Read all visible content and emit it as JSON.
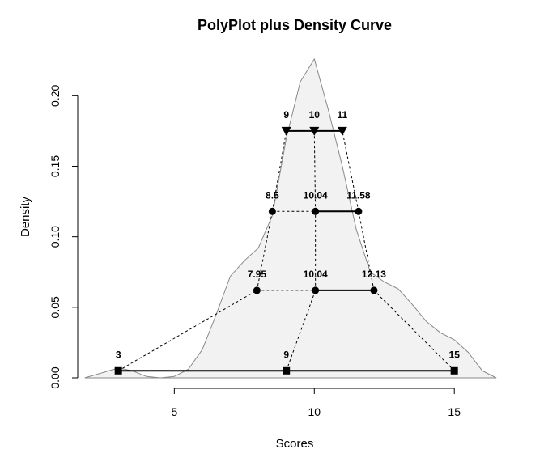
{
  "chart_data": {
    "type": "line",
    "title": "PolyPlot plus Density Curve",
    "xlabel": "Scores",
    "ylabel": "Density",
    "xlim": [
      1,
      16.7
    ],
    "ylim": [
      0,
      0.226
    ],
    "x_ticks": [
      5,
      10,
      15
    ],
    "y_ticks": [
      0.0,
      0.05,
      0.1,
      0.15,
      0.2
    ],
    "x_tick_labels": [
      "5",
      "10",
      "15"
    ],
    "y_tick_labels": [
      "0.00",
      "0.05",
      "0.10",
      "0.15",
      "0.20"
    ],
    "grid": false,
    "density_curve": {
      "x": [
        1.8,
        2.5,
        3.0,
        3.5,
        4.0,
        4.5,
        5.0,
        5.5,
        6.0,
        6.5,
        7.0,
        7.5,
        8.0,
        8.5,
        9.0,
        9.5,
        10.0,
        10.5,
        11.0,
        11.5,
        12.0,
        12.5,
        13.0,
        13.5,
        14.0,
        14.5,
        15.0,
        15.5,
        16.0,
        16.5
      ],
      "y": [
        0.0,
        0.004,
        0.007,
        0.005,
        0.001,
        0.0,
        0.001,
        0.006,
        0.02,
        0.045,
        0.072,
        0.083,
        0.092,
        0.115,
        0.17,
        0.21,
        0.226,
        0.19,
        0.15,
        0.105,
        0.075,
        0.068,
        0.063,
        0.052,
        0.04,
        0.032,
        0.027,
        0.018,
        0.005,
        0.0
      ]
    },
    "series": [
      {
        "marker": "square",
        "y": 0.005,
        "x": [
          3,
          9,
          15
        ],
        "labels": [
          "3",
          "9",
          "15"
        ]
      },
      {
        "marker": "circle",
        "y": 0.062,
        "x": [
          7.95,
          10.04,
          12.13
        ],
        "labels": [
          "7.95",
          "10.04",
          "12.13"
        ]
      },
      {
        "marker": "circle",
        "y": 0.118,
        "x": [
          8.5,
          10.04,
          11.58
        ],
        "labels": [
          "8.5",
          "10.04",
          "11.58"
        ]
      },
      {
        "marker": "triangle",
        "y": 0.175,
        "x": [
          9,
          10,
          11
        ],
        "labels": [
          "9",
          "10",
          "11"
        ]
      }
    ],
    "colors": {
      "curve_stroke": "#888888",
      "curve_fill": "#f2f2f2",
      "lines": "#000000"
    }
  }
}
